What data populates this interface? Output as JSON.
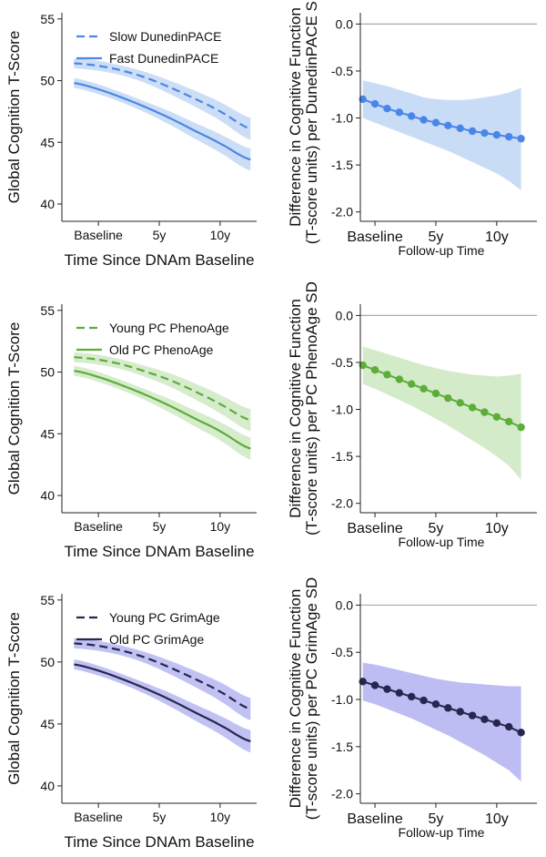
{
  "chart_data": [
    {
      "type": "line",
      "panel": "left",
      "xlabel": "Time Since DNAm Baseline",
      "ylabel": "Global Cognition T-Score",
      "xlim": [
        -3,
        13
      ],
      "ylim": [
        38.6,
        55.5
      ],
      "x_ticks": [
        {
          "value": 0,
          "label": "Baseline"
        },
        {
          "value": 5,
          "label": "5y"
        },
        {
          "value": 10,
          "label": "10y"
        }
      ],
      "y_ticks": [
        {
          "value": 40,
          "label": "40"
        },
        {
          "value": 45,
          "label": "45"
        },
        {
          "value": 50,
          "label": "50"
        },
        {
          "value": 55,
          "label": "55"
        }
      ],
      "legend_position": "top-left",
      "color": "#4a86e8",
      "band_color": "#c3d8f5",
      "series": [
        {
          "name": "Slow DunedinPACE",
          "style": "dashed",
          "x": [
            -2,
            0,
            2,
            4,
            6,
            8,
            10,
            12.5
          ],
          "values": [
            51.4,
            51.2,
            50.8,
            50.2,
            49.4,
            48.5,
            47.5,
            46.1
          ],
          "band": [
            0.4,
            0.4,
            0.4,
            0.45,
            0.55,
            0.65,
            0.75,
            0.9
          ]
        },
        {
          "name": "Fast DunedinPACE",
          "style": "solid",
          "x": [
            -2,
            0,
            2,
            4,
            6,
            8,
            10,
            12.5
          ],
          "values": [
            49.8,
            49.3,
            48.6,
            47.8,
            46.9,
            45.9,
            44.9,
            43.6
          ],
          "band": [
            0.4,
            0.4,
            0.4,
            0.45,
            0.55,
            0.65,
            0.75,
            0.9
          ]
        }
      ]
    },
    {
      "type": "line",
      "panel": "right",
      "xlabel": "Follow-up Time",
      "ylabel": [
        "Difference in Cognitive Function",
        "(T-score units) per DunedinPACE SD"
      ],
      "xlim": [
        -1.2,
        13.3
      ],
      "ylim": [
        -2.1,
        0.12
      ],
      "x_ticks": [
        {
          "value": 0,
          "label": "Baseline"
        },
        {
          "value": 5,
          "label": "5y"
        },
        {
          "value": 10,
          "label": "10y"
        }
      ],
      "y_ticks": [
        {
          "value": 0,
          "label": "0.0"
        },
        {
          "value": -0.5,
          "label": "-0.5"
        },
        {
          "value": -1,
          "label": "-1.0"
        },
        {
          "value": -1.5,
          "label": "-1.5"
        },
        {
          "value": -2,
          "label": "-2.0"
        }
      ],
      "reference_line": 0,
      "color": "#4a86e8",
      "band_color": "#c3d8f5",
      "series": [
        {
          "name": "DunedinPACE",
          "x": [
            -1,
            0,
            1,
            2,
            3,
            4,
            5,
            6,
            7,
            8,
            9,
            10,
            11,
            12
          ],
          "values": [
            -0.8,
            -0.85,
            -0.9,
            -0.94,
            -0.98,
            -1.02,
            -1.05,
            -1.08,
            -1.11,
            -1.14,
            -1.16,
            -1.18,
            -1.2,
            -1.22
          ],
          "lower": [
            -1.0,
            -1.05,
            -1.1,
            -1.15,
            -1.2,
            -1.25,
            -1.3,
            -1.35,
            -1.41,
            -1.47,
            -1.53,
            -1.59,
            -1.67,
            -1.77
          ],
          "upper": [
            -0.6,
            -0.63,
            -0.66,
            -0.7,
            -0.74,
            -0.78,
            -0.8,
            -0.81,
            -0.81,
            -0.8,
            -0.78,
            -0.76,
            -0.73,
            -0.68
          ]
        }
      ]
    },
    {
      "type": "line",
      "panel": "left",
      "xlabel": "Time Since DNAm Baseline",
      "ylabel": "Global Cognition T-Score",
      "xlim": [
        -3,
        13
      ],
      "ylim": [
        38.6,
        55.5
      ],
      "x_ticks": [
        {
          "value": 0,
          "label": "Baseline"
        },
        {
          "value": 5,
          "label": "5y"
        },
        {
          "value": 10,
          "label": "10y"
        }
      ],
      "y_ticks": [
        {
          "value": 40,
          "label": "40"
        },
        {
          "value": 45,
          "label": "45"
        },
        {
          "value": 50,
          "label": "50"
        },
        {
          "value": 55,
          "label": "55"
        }
      ],
      "legend_position": "top-left",
      "color": "#5cad3a",
      "band_color": "#cfe9c4",
      "series": [
        {
          "name": "Young PC PhenoAge",
          "style": "dashed",
          "x": [
            -2,
            0,
            2,
            4,
            6,
            8,
            10,
            12.5
          ],
          "values": [
            51.2,
            51.0,
            50.6,
            50.0,
            49.3,
            48.4,
            47.4,
            46.1
          ],
          "band": [
            0.4,
            0.4,
            0.4,
            0.45,
            0.55,
            0.65,
            0.75,
            0.9
          ]
        },
        {
          "name": "Old PC PhenoAge",
          "style": "solid",
          "x": [
            -2,
            0,
            2,
            4,
            6,
            8,
            10,
            12.5
          ],
          "values": [
            50.1,
            49.6,
            48.9,
            48.1,
            47.2,
            46.2,
            45.2,
            43.8
          ],
          "band": [
            0.4,
            0.4,
            0.4,
            0.45,
            0.55,
            0.65,
            0.75,
            0.9
          ]
        }
      ]
    },
    {
      "type": "line",
      "panel": "right",
      "xlabel": "Follow-up Time",
      "ylabel": [
        "Difference in Cognitive Function",
        "(T-score units) per PC PhenoAge SD"
      ],
      "xlim": [
        -1.2,
        13.3
      ],
      "ylim": [
        -2.1,
        0.12
      ],
      "x_ticks": [
        {
          "value": 0,
          "label": "Baseline"
        },
        {
          "value": 5,
          "label": "5y"
        },
        {
          "value": 10,
          "label": "10y"
        }
      ],
      "y_ticks": [
        {
          "value": 0,
          "label": "0.0"
        },
        {
          "value": -0.5,
          "label": "-0.5"
        },
        {
          "value": -1,
          "label": "-1.0"
        },
        {
          "value": -1.5,
          "label": "-1.5"
        },
        {
          "value": -2,
          "label": "-2.0"
        }
      ],
      "reference_line": 0,
      "color": "#5cad3a",
      "band_color": "#cfe9c4",
      "series": [
        {
          "name": "PC PhenoAge",
          "x": [
            -1,
            0,
            1,
            2,
            3,
            4,
            5,
            6,
            7,
            8,
            9,
            10,
            11,
            12
          ],
          "values": [
            -0.53,
            -0.58,
            -0.63,
            -0.68,
            -0.73,
            -0.78,
            -0.83,
            -0.88,
            -0.93,
            -0.98,
            -1.03,
            -1.08,
            -1.13,
            -1.19
          ],
          "lower": [
            -0.73,
            -0.78,
            -0.84,
            -0.9,
            -0.96,
            -1.03,
            -1.1,
            -1.17,
            -1.25,
            -1.33,
            -1.41,
            -1.5,
            -1.6,
            -1.75
          ],
          "upper": [
            -0.33,
            -0.37,
            -0.41,
            -0.45,
            -0.49,
            -0.53,
            -0.56,
            -0.59,
            -0.61,
            -0.63,
            -0.64,
            -0.65,
            -0.64,
            -0.62
          ]
        }
      ]
    },
    {
      "type": "line",
      "panel": "left",
      "xlabel": "Time Since DNAm Baseline",
      "ylabel": "Global Cognition T-Score",
      "xlim": [
        -3,
        13
      ],
      "ylim": [
        38.6,
        55.5
      ],
      "x_ticks": [
        {
          "value": 0,
          "label": "Baseline"
        },
        {
          "value": 5,
          "label": "5y"
        },
        {
          "value": 10,
          "label": "10y"
        }
      ],
      "y_ticks": [
        {
          "value": 40,
          "label": "40"
        },
        {
          "value": 45,
          "label": "45"
        },
        {
          "value": 50,
          "label": "50"
        },
        {
          "value": 55,
          "label": "55"
        }
      ],
      "legend_position": "top-left",
      "color": "#26264f",
      "band_color": "#b6b6f2",
      "series": [
        {
          "name": "Young PC GrimAge",
          "style": "dashed",
          "x": [
            -2,
            0,
            2,
            4,
            6,
            8,
            10,
            12.5
          ],
          "values": [
            51.5,
            51.3,
            50.9,
            50.3,
            49.5,
            48.6,
            47.6,
            46.2
          ],
          "band": [
            0.4,
            0.4,
            0.4,
            0.45,
            0.55,
            0.65,
            0.75,
            0.9
          ]
        },
        {
          "name": "Old PC GrimAge",
          "style": "solid",
          "x": [
            -2,
            0,
            2,
            4,
            6,
            8,
            10,
            12.5
          ],
          "values": [
            49.8,
            49.3,
            48.6,
            47.8,
            46.9,
            45.9,
            44.9,
            43.6
          ],
          "band": [
            0.4,
            0.4,
            0.4,
            0.45,
            0.55,
            0.65,
            0.75,
            0.9
          ]
        }
      ]
    },
    {
      "type": "line",
      "panel": "right",
      "xlabel": "Follow-up Time",
      "ylabel": [
        "Difference in Cognitive Function",
        "(T-score units) per PC GrimAge SD"
      ],
      "xlim": [
        -1.2,
        13.3
      ],
      "ylim": [
        -2.1,
        0.12
      ],
      "x_ticks": [
        {
          "value": 0,
          "label": "Baseline"
        },
        {
          "value": 5,
          "label": "5y"
        },
        {
          "value": 10,
          "label": "10y"
        }
      ],
      "y_ticks": [
        {
          "value": 0,
          "label": "0.0"
        },
        {
          "value": -0.5,
          "label": "-0.5"
        },
        {
          "value": -1,
          "label": "-1.0"
        },
        {
          "value": -1.5,
          "label": "-1.5"
        },
        {
          "value": -2,
          "label": "-2.0"
        }
      ],
      "reference_line": 0,
      "color": "#26264f",
      "band_color": "#b6b6f2",
      "series": [
        {
          "name": "PC GrimAge",
          "x": [
            -1,
            0,
            1,
            2,
            3,
            4,
            5,
            6,
            7,
            8,
            9,
            10,
            11,
            12
          ],
          "values": [
            -0.81,
            -0.85,
            -0.89,
            -0.93,
            -0.97,
            -1.01,
            -1.05,
            -1.09,
            -1.13,
            -1.17,
            -1.21,
            -1.25,
            -1.29,
            -1.35
          ],
          "lower": [
            -1.01,
            -1.05,
            -1.1,
            -1.15,
            -1.2,
            -1.26,
            -1.32,
            -1.38,
            -1.45,
            -1.52,
            -1.59,
            -1.67,
            -1.75,
            -1.87
          ],
          "upper": [
            -0.61,
            -0.63,
            -0.66,
            -0.69,
            -0.72,
            -0.75,
            -0.78,
            -0.8,
            -0.82,
            -0.83,
            -0.84,
            -0.85,
            -0.86,
            -0.86
          ]
        }
      ]
    }
  ]
}
